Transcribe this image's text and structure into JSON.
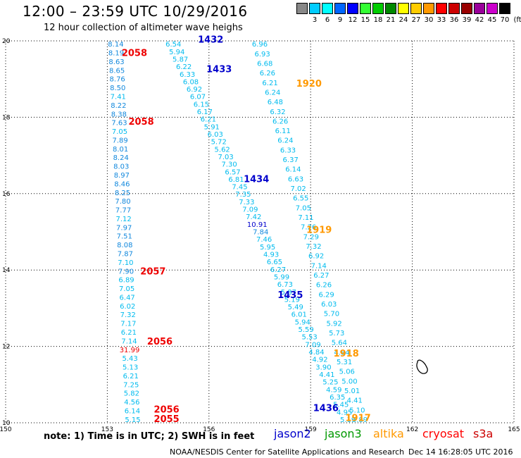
{
  "title": "12:00 – 23:59 UTC 10/29/2016",
  "subtitle": "12 hour collection of altimeter wave heighs",
  "color_scale": {
    "unit": "(ft)",
    "bins": [
      {
        "label": "",
        "color": "#888888"
      },
      {
        "label": "3",
        "color": "#00ccff"
      },
      {
        "label": "6",
        "color": "#00ffff"
      },
      {
        "label": "9",
        "color": "#0066ff"
      },
      {
        "label": "12",
        "color": "#0000ff"
      },
      {
        "label": "15",
        "color": "#33ff33"
      },
      {
        "label": "18",
        "color": "#00cc00"
      },
      {
        "label": "21",
        "color": "#008800"
      },
      {
        "label": "24",
        "color": "#ffff00"
      },
      {
        "label": "27",
        "color": "#ffcc00"
      },
      {
        "label": "30",
        "color": "#ff9900"
      },
      {
        "label": "33",
        "color": "#ff0000"
      },
      {
        "label": "36",
        "color": "#cc0000"
      },
      {
        "label": "39",
        "color": "#990000"
      },
      {
        "label": "42",
        "color": "#990099"
      },
      {
        "label": "45",
        "color": "#cc00cc"
      },
      {
        "label": "70",
        "color": "#000000"
      }
    ]
  },
  "note": "note: 1) Time is in UTC; 2) SWH is in feet",
  "legend": [
    {
      "name": "jason2",
      "color": "#0000cc"
    },
    {
      "name": "jason3",
      "color": "#009900"
    },
    {
      "name": "altika",
      "color": "#ff9900"
    },
    {
      "name": "cryosat",
      "color": "#ff0000"
    },
    {
      "name": "s3a",
      "color": "#cc0000"
    }
  ],
  "footer": "NOAA/NESDIS Center for Satellite Applications and Research",
  "timestamp": "Dec 14 16:28:05 UTC 2016",
  "chart_data": {
    "type": "scatter",
    "xlim": [
      150,
      165
    ],
    "ylim": [
      10,
      20
    ],
    "x_ticks": [
      "150",
      "153",
      "156",
      "159",
      "162",
      "165"
    ],
    "y_ticks": [
      "10",
      "12",
      "14",
      "16",
      "18",
      "20"
    ],
    "grid": true,
    "colors": {
      "light": "#00bbee",
      "medium": "#1188dd",
      "dark": "#0000cc",
      "red": "#ee0000"
    },
    "tracks": [
      {
        "name": "cryosat",
        "x_start": 153.25,
        "x_end": 153.75,
        "values": [
          "8.14",
          "8.19",
          "8.63",
          "8.65",
          "8.76",
          "8.50",
          "7.41",
          "8.22",
          "8.38",
          "7.63",
          "7.05",
          "7.89",
          "8.01",
          "8.24",
          "8.03",
          "8.97",
          "8.46",
          "8.25",
          "7.80",
          "7.77",
          "7.12",
          "7.97",
          "7.51",
          "8.08",
          "7.87",
          "7.10",
          "7.90",
          "6.89",
          "7.05",
          "6.47",
          "6.02",
          "7.32",
          "7.17",
          "6.21",
          "7.14",
          "31.99",
          "5.43",
          "5.13",
          "6.21",
          "7.25",
          "5.82",
          "4.56",
          "6.14",
          "5.15"
        ]
      },
      {
        "name": "jason2-1432",
        "x_start": 154.95,
        "x_end": 160.1,
        "values": [
          "6.54",
          "5.94",
          "5.87",
          "6.22",
          "6.33",
          "6.08",
          "6.92",
          "6.07",
          "6.15",
          "6.17",
          "6.21",
          "5.91",
          "6.03",
          "5.72",
          "5.62",
          "7.03",
          "7.30",
          "6.57",
          "6.81",
          "7.45",
          "7.35",
          "7.33",
          "7.09",
          "7.42",
          "10.91",
          "7.84",
          "7.46",
          "5.95",
          "4.93",
          "6.65",
          "6.27",
          "5.99",
          "6.73",
          "5.87",
          "5.19",
          "5.49",
          "6.01",
          "5.94",
          "5.59",
          "5.53",
          "7.09",
          "4.84",
          "4.92",
          "3.90",
          "4.41",
          "5.25",
          "4.59",
          "6.35",
          "5.45",
          "4.95",
          "5.19"
        ]
      },
      {
        "name": "altika-1917",
        "x_start": 157.5,
        "x_end": 160.45,
        "values": [
          "6.96",
          "6.93",
          "6.68",
          "6.26",
          "6.21",
          "6.24",
          "6.48",
          "6.32",
          "6.26",
          "6.11",
          "6.24",
          "6.33",
          "6.37",
          "6.14",
          "6.63",
          "7.02",
          "6.55",
          "7.05",
          "7.11",
          "7.26",
          "7.29",
          "7.32",
          "6.92",
          "7.14",
          "6.27",
          "6.26",
          "6.29",
          "6.03",
          "5.70",
          "5.92",
          "5.73",
          "5.64",
          "4.84",
          "5.31",
          "5.06",
          "5.00",
          "5.01",
          "4.41",
          "5.10",
          "4.89"
        ]
      }
    ],
    "labels": [
      {
        "text": "1432",
        "x": 156.05,
        "y": 19.95,
        "color": "dark"
      },
      {
        "text": "1433",
        "x": 156.3,
        "y": 19.18,
        "color": "dark"
      },
      {
        "text": "1434",
        "x": 157.4,
        "y": 16.3,
        "color": "dark"
      },
      {
        "text": "1435",
        "x": 158.4,
        "y": 13.27,
        "color": "dark"
      },
      {
        "text": "1436",
        "x": 159.45,
        "y": 10.3,
        "color": "dark"
      },
      {
        "text": "2058",
        "x": 153.8,
        "y": 19.6,
        "color": "red"
      },
      {
        "text": "2058",
        "x": 154.0,
        "y": 17.8,
        "color": "red"
      },
      {
        "text": "2057",
        "x": 154.35,
        "y": 13.88,
        "color": "red"
      },
      {
        "text": "2056",
        "x": 154.55,
        "y": 12.05,
        "color": "red"
      },
      {
        "text": "2056",
        "x": 154.75,
        "y": 10.27,
        "color": "red"
      },
      {
        "text": "2055",
        "x": 154.75,
        "y": 10.02,
        "color": "red"
      },
      {
        "text": "1920",
        "x": 158.95,
        "y": 18.8,
        "color": "orange"
      },
      {
        "text": "1919",
        "x": 159.25,
        "y": 14.97,
        "color": "orange"
      },
      {
        "text": "1918",
        "x": 160.05,
        "y": 11.73,
        "color": "orange"
      },
      {
        "text": "1917",
        "x": 160.4,
        "y": 10.05,
        "color": "orange"
      }
    ]
  }
}
